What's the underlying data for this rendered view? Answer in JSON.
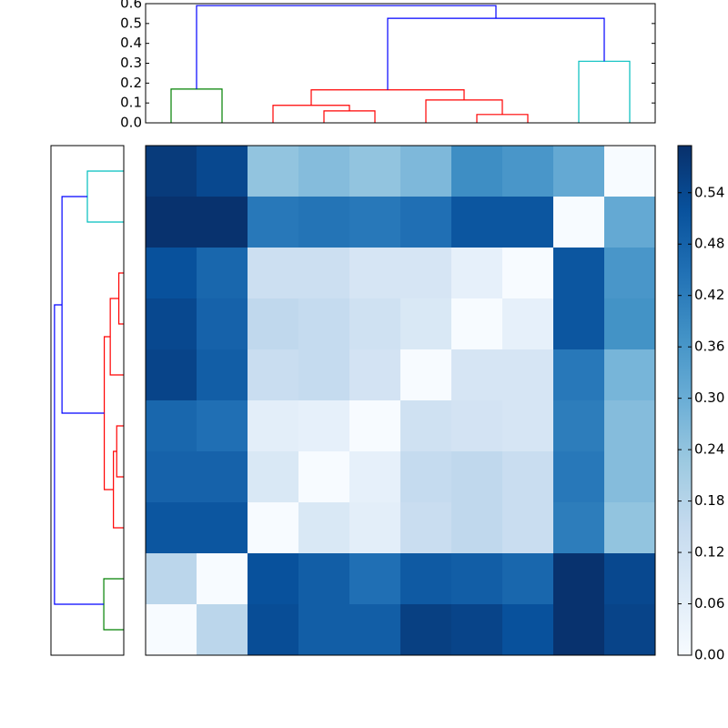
{
  "chart_data": {
    "type": "heatmap",
    "values": [
      [
        0.57,
        0.54,
        0.24,
        0.26,
        0.24,
        0.27,
        0.38,
        0.36,
        0.31,
        0
      ],
      [
        0.59,
        0.59,
        0.43,
        0.44,
        0.43,
        0.45,
        0.51,
        0.51,
        0,
        0.31
      ],
      [
        0.52,
        0.47,
        0.13,
        0.13,
        0.1,
        0.1,
        0.05,
        0,
        0.51,
        0.36
      ],
      [
        0.54,
        0.48,
        0.16,
        0.15,
        0.12,
        0.09,
        0,
        0.05,
        0.51,
        0.37
      ],
      [
        0.55,
        0.49,
        0.14,
        0.15,
        0.11,
        0,
        0.1,
        0.1,
        0.43,
        0.28
      ],
      [
        0.47,
        0.45,
        0.06,
        0.05,
        0,
        0.12,
        0.11,
        0.1,
        0.42,
        0.26
      ],
      [
        0.48,
        0.48,
        0.09,
        0,
        0.05,
        0.15,
        0.16,
        0.14,
        0.43,
        0.26
      ],
      [
        0.51,
        0.51,
        0,
        0.09,
        0.06,
        0.14,
        0.16,
        0.14,
        0.42,
        0.24
      ],
      [
        0.17,
        0,
        0.52,
        0.49,
        0.45,
        0.5,
        0.49,
        0.47,
        0.59,
        0.54
      ],
      [
        0,
        0.17,
        0.53,
        0.49,
        0.49,
        0.56,
        0.55,
        0.52,
        0.59,
        0.55
      ]
    ],
    "colormap": [
      "#f7fbff",
      "#deebf7",
      "#c6dbef",
      "#9ecae1",
      "#6baed6",
      "#4292c6",
      "#2171b5",
      "#08519c",
      "#08306b"
    ],
    "colorbar": {
      "lim": [
        0,
        0.595
      ],
      "ticks": [
        {
          "value": 0,
          "label": "0.00"
        },
        0.06,
        0.12,
        0.18,
        0.24,
        {
          "value": 0.3,
          "label": "0.30"
        },
        0.36,
        0.42,
        0.48,
        0.54
      ]
    },
    "top_dendrogram": {
      "xlim": [
        0,
        100
      ],
      "ylim": [
        0,
        0.6
      ],
      "yticks": [
        {
          "value": 0,
          "label": "0.0"
        },
        0.1,
        0.2,
        0.3,
        0.4,
        0.5,
        0.6
      ],
      "links": [
        {
          "color": "#008000",
          "x": [
            5,
            5,
            15,
            15
          ],
          "y": [
            0,
            0.17,
            0.17,
            0
          ]
        },
        {
          "color": "#ff0000",
          "x": [
            35,
            35,
            45,
            45
          ],
          "y": [
            0,
            0.06,
            0.06,
            0
          ]
        },
        {
          "color": "#ff0000",
          "x": [
            25,
            25,
            40,
            40
          ],
          "y": [
            0,
            0.088,
            0.088,
            0.06
          ]
        },
        {
          "color": "#ff0000",
          "x": [
            65,
            65,
            75,
            75
          ],
          "y": [
            0,
            0.042,
            0.042,
            0
          ]
        },
        {
          "color": "#ff0000",
          "x": [
            55,
            55,
            70,
            70
          ],
          "y": [
            0,
            0.115,
            0.115,
            0.042
          ]
        },
        {
          "color": "#ff0000",
          "x": [
            32.5,
            32.5,
            62.5,
            62.5
          ],
          "y": [
            0.088,
            0.166,
            0.166,
            0.115
          ]
        },
        {
          "color": "#00bfbf",
          "x": [
            85,
            85,
            95,
            95
          ],
          "y": [
            0,
            0.31,
            0.31,
            0
          ]
        },
        {
          "color": "#0000ff",
          "x": [
            47.5,
            47.5,
            90,
            90
          ],
          "y": [
            0.166,
            0.526,
            0.526,
            0.31
          ]
        },
        {
          "color": "#0000ff",
          "x": [
            10,
            10,
            68.75,
            68.75
          ],
          "y": [
            0.17,
            0.59,
            0.59,
            0.526
          ]
        }
      ]
    },
    "left_dendrogram": {
      "xlim": [
        0,
        0.62
      ]
    }
  }
}
